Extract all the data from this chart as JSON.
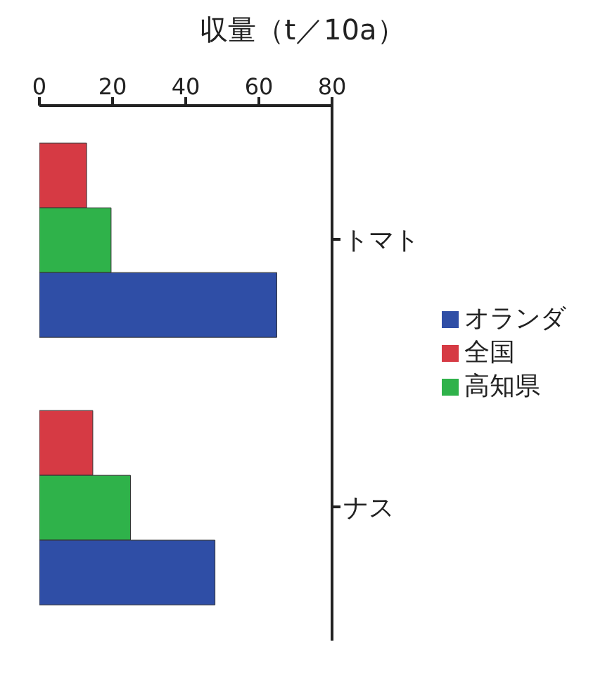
{
  "chart_data": {
    "type": "bar",
    "orientation": "horizontal",
    "xlabel": "収量（t／10a）",
    "categories": [
      "トマト",
      "ナス"
    ],
    "series": [
      {
        "name": "全国",
        "color": "#d63a44",
        "values": [
          12.9,
          14.6
        ]
      },
      {
        "name": "高知県",
        "color": "#2fb24a",
        "values": [
          19.6,
          24.9
        ]
      },
      {
        "name": "オランダ",
        "color": "#2f4ea6",
        "values": [
          64.9,
          48.0
        ]
      }
    ],
    "xlim": [
      0,
      80
    ],
    "xticks": [
      0,
      20,
      40,
      60,
      80
    ],
    "grid": false,
    "legend": "right"
  }
}
